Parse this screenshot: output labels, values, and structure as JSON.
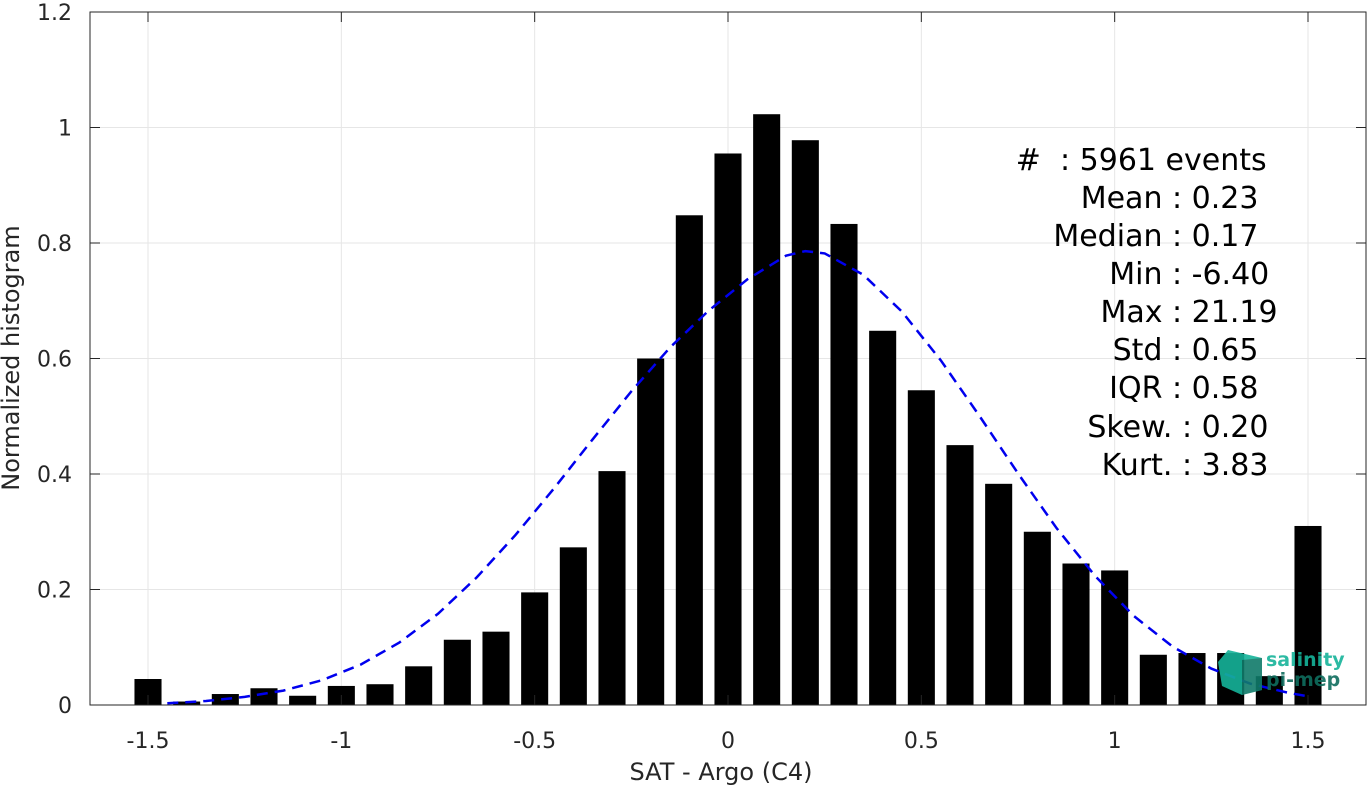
{
  "chart_data": {
    "type": "bar",
    "title": "",
    "xlabel": "SAT - Argo (C4)",
    "ylabel": "Normalized histogram",
    "xlim": [
      -1.65,
      1.65
    ],
    "ylim": [
      0,
      1.2
    ],
    "xticks": [
      -1.5,
      -1,
      -0.5,
      0,
      0.5,
      1,
      1.5
    ],
    "xtick_labels": [
      "-1.5",
      "-1",
      "-0.5",
      "0",
      "0.5",
      "1",
      "1.5"
    ],
    "yticks": [
      0,
      0.2,
      0.4,
      0.6,
      0.8,
      1,
      1.2
    ],
    "ytick_labels": [
      "0",
      "0.2",
      "0.4",
      "0.6",
      "0.8",
      "1",
      "1.2"
    ],
    "grid": true,
    "bar_color": "#000000",
    "bar_width": 0.07,
    "bars": {
      "x": [
        -1.5,
        -1.4,
        -1.3,
        -1.2,
        -1.1,
        -1.0,
        -0.9,
        -0.8,
        -0.7,
        -0.6,
        -0.5,
        -0.4,
        -0.3,
        -0.2,
        -0.1,
        0.0,
        0.1,
        0.2,
        0.3,
        0.4,
        0.5,
        0.6,
        0.7,
        0.8,
        0.9,
        1.0,
        1.1,
        1.2,
        1.3,
        1.4,
        1.5
      ],
      "values": [
        0.045,
        0.006,
        0.019,
        0.029,
        0.016,
        0.033,
        0.036,
        0.067,
        0.113,
        0.127,
        0.195,
        0.273,
        0.405,
        0.6,
        0.848,
        0.955,
        1.023,
        0.978,
        0.833,
        0.648,
        0.545,
        0.45,
        0.383,
        0.3,
        0.245,
        0.233,
        0.087,
        0.09,
        0.09,
        0.05,
        0.31
      ]
    },
    "fit_curve": {
      "style": "dashed",
      "color": "#0000ee",
      "x": [
        -1.45,
        -1.35,
        -1.25,
        -1.15,
        -1.05,
        -0.95,
        -0.85,
        -0.75,
        -0.65,
        -0.55,
        -0.45,
        -0.35,
        -0.25,
        -0.15,
        -0.05,
        0.05,
        0.15,
        0.2,
        0.25,
        0.35,
        0.45,
        0.55,
        0.65,
        0.75,
        0.85,
        0.95,
        1.05,
        1.15,
        1.25,
        1.35,
        1.45,
        1.5
      ],
      "y": [
        0.003,
        0.007,
        0.014,
        0.025,
        0.043,
        0.07,
        0.108,
        0.158,
        0.221,
        0.294,
        0.375,
        0.46,
        0.543,
        0.619,
        0.683,
        0.737,
        0.778,
        0.786,
        0.782,
        0.745,
        0.681,
        0.597,
        0.501,
        0.401,
        0.306,
        0.223,
        0.154,
        0.101,
        0.063,
        0.037,
        0.021,
        0.015
      ]
    }
  },
  "stats": {
    "lines": [
      {
        "label": "#  ",
        "value": ": 5961 events"
      },
      {
        "label": "Mean ",
        "value": ": 0.23"
      },
      {
        "label": "Median ",
        "value": ": 0.17"
      },
      {
        "label": "Min ",
        "value": ": -6.40"
      },
      {
        "label": "Max ",
        "value": ": 21.19"
      },
      {
        "label": "Std ",
        "value": ": 0.65"
      },
      {
        "label": "IQR ",
        "value": ": 0.58"
      },
      {
        "label": "Skew. ",
        "value": ": 0.20"
      },
      {
        "label": "Kurt. ",
        "value": ": 3.83"
      }
    ]
  },
  "logo": {
    "line1": "salinity",
    "line2": "pi-mep",
    "color": "#16b39a",
    "dark_color": "#0f6d5e"
  }
}
